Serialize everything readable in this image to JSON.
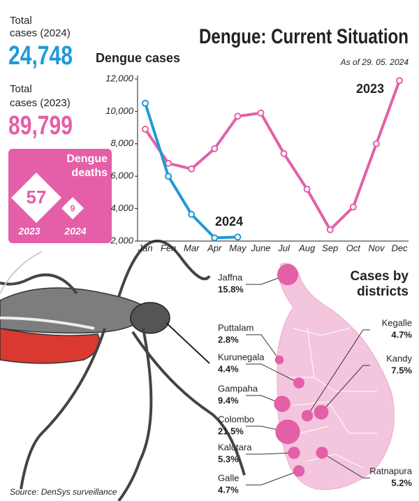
{
  "chart_data": {
    "type": "line",
    "title": "Dengue: Current Situation",
    "subtitle": "As of 29. 05. 2024",
    "y_label": "Dengue cases",
    "categories": [
      "Jan",
      "Fen",
      "Mar",
      "Apr",
      "May",
      "June",
      "Jul",
      "Aug",
      "Sep",
      "Oct",
      "Nov",
      "Dec"
    ],
    "series": [
      {
        "name": "2023",
        "color": "#e45fa8",
        "values": [
          8900,
          6800,
          6450,
          7700,
          9700,
          9900,
          7400,
          5200,
          2700,
          4100,
          8000,
          11900
        ]
      },
      {
        "name": "2024",
        "color": "#1f9ad6",
        "values": [
          10500,
          6000,
          3650,
          2200,
          2250,
          null,
          null,
          null,
          null,
          null,
          null,
          null
        ]
      }
    ],
    "ylim": [
      2000,
      12000
    ],
    "yticks": [
      {
        "value": 2000,
        "label": "2,000"
      },
      {
        "value": 4000,
        "label": "4,000"
      },
      {
        "value": 6000,
        "label": "6,000"
      },
      {
        "value": 8000,
        "label": "8,000"
      },
      {
        "value": 10000,
        "label": "10,000"
      },
      {
        "value": 12000,
        "label": "12,000"
      }
    ],
    "grid": false
  },
  "totals": [
    {
      "label": [
        "Total",
        "cases (2024)"
      ],
      "value": "24,748",
      "color": "#1f9ad6"
    },
    {
      "label": [
        "Total",
        "cases (2023)"
      ],
      "value": "89,799",
      "color": "#e45fa8"
    }
  ],
  "deaths": {
    "label": [
      "Dengue",
      "deaths"
    ],
    "items": [
      {
        "value": "57",
        "year": "2023"
      },
      {
        "value": "9",
        "year": "2024"
      }
    ]
  },
  "districts": {
    "title": [
      "Cases by",
      "districts"
    ],
    "items": [
      {
        "name": "Jaffna",
        "value": 15.8,
        "value_label": "15.8%"
      },
      {
        "name": "Puttalam",
        "value": 2.8,
        "value_label": "2.8%"
      },
      {
        "name": "Kurunegala",
        "value": 4.4,
        "value_label": "4.4%"
      },
      {
        "name": "Gampaha",
        "value": 9.4,
        "value_label": "9.4%"
      },
      {
        "name": "Colombo",
        "value": 21.5,
        "value_label": "21.5%"
      },
      {
        "name": "Kalutara",
        "value": 5.3,
        "value_label": "5.3%"
      },
      {
        "name": "Galle",
        "value": 4.7,
        "value_label": "4.7%"
      },
      {
        "name": "Kegalle",
        "value": 4.7,
        "value_label": "4.7%"
      },
      {
        "name": "Kandy",
        "value": 7.5,
        "value_label": "7.5%"
      },
      {
        "name": "Ratnapura",
        "value": 5.2,
        "value_label": "5.2%"
      }
    ]
  },
  "source": "Source: DenSys surveillance"
}
